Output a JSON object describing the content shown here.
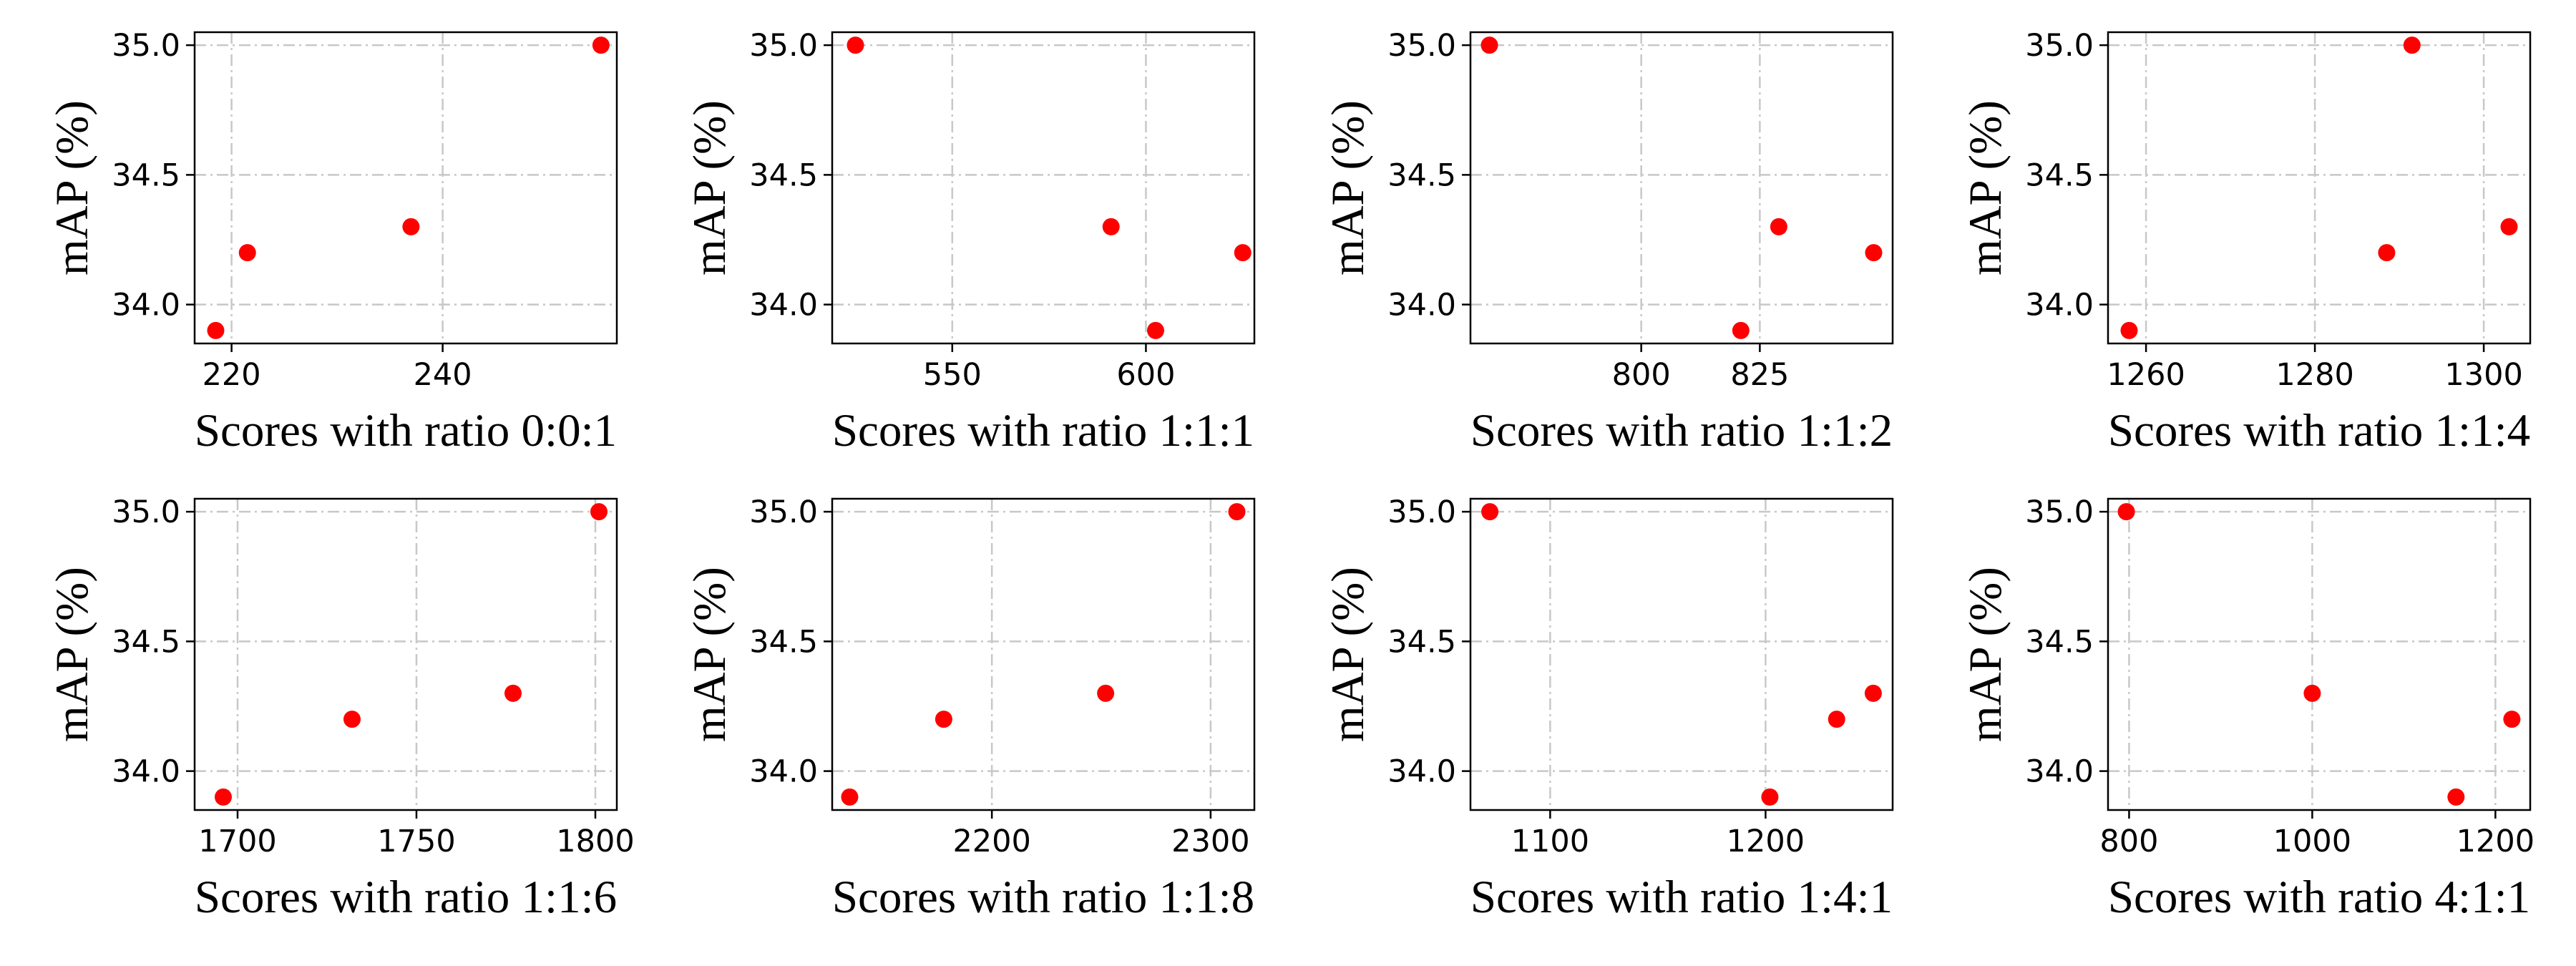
{
  "colors": {
    "point": "#ff0000",
    "grid": "#c8c8c8"
  },
  "chart_data": [
    {
      "type": "scatter",
      "xlabel": "Scores with ratio 0:0:1",
      "ylabel": "mAP (%)",
      "x": [
        218.5,
        221.5,
        237,
        255
      ],
      "y": [
        33.9,
        34.2,
        34.3,
        35.0
      ],
      "xlim": [
        216.5,
        256.5
      ],
      "ylim": [
        33.85,
        35.05
      ],
      "xticks": [
        220,
        240
      ],
      "yticks": [
        34.0,
        34.5,
        35.0
      ],
      "grid": true
    },
    {
      "type": "scatter",
      "xlabel": "Scores with ratio 1:1:1",
      "ylabel": "mAP (%)",
      "x": [
        525,
        591,
        602.5,
        625
      ],
      "y": [
        35.0,
        34.3,
        33.9,
        34.2
      ],
      "xlim": [
        519,
        628
      ],
      "ylim": [
        33.85,
        35.05
      ],
      "xticks": [
        550,
        600
      ],
      "yticks": [
        34.0,
        34.5,
        35.0
      ],
      "grid": true
    },
    {
      "type": "scatter",
      "xlabel": "Scores with ratio 1:1:2",
      "ylabel": "mAP (%)",
      "x": [
        768,
        821,
        829,
        849
      ],
      "y": [
        35.0,
        33.9,
        34.3,
        34.2
      ],
      "xlim": [
        764,
        853
      ],
      "ylim": [
        33.85,
        35.05
      ],
      "xticks": [
        800,
        825
      ],
      "yticks": [
        34.0,
        34.5,
        35.0
      ],
      "grid": true
    },
    {
      "type": "scatter",
      "xlabel": "Scores with ratio 1:1:4",
      "ylabel": "mAP (%)",
      "x": [
        1258,
        1288.5,
        1291.5,
        1303
      ],
      "y": [
        33.9,
        34.2,
        35.0,
        34.3
      ],
      "xlim": [
        1255.5,
        1305.5
      ],
      "ylim": [
        33.85,
        35.05
      ],
      "xticks": [
        1260,
        1280,
        1300
      ],
      "yticks": [
        34.0,
        34.5,
        35.0
      ],
      "grid": true
    },
    {
      "type": "scatter",
      "xlabel": "Scores with ratio 1:1:6",
      "ylabel": "mAP (%)",
      "x": [
        1696,
        1732,
        1777,
        1801
      ],
      "y": [
        33.9,
        34.2,
        34.3,
        35.0
      ],
      "xlim": [
        1688,
        1806
      ],
      "ylim": [
        33.85,
        35.05
      ],
      "xticks": [
        1700,
        1750,
        1800
      ],
      "yticks": [
        34.0,
        34.5,
        35.0
      ],
      "grid": true
    },
    {
      "type": "scatter",
      "xlabel": "Scores with ratio 1:1:8",
      "ylabel": "mAP (%)",
      "x": [
        2135,
        2178,
        2252,
        2312
      ],
      "y": [
        33.9,
        34.2,
        34.3,
        35.0
      ],
      "xlim": [
        2127,
        2320
      ],
      "ylim": [
        33.85,
        35.05
      ],
      "xticks": [
        2200,
        2300
      ],
      "yticks": [
        34.0,
        34.5,
        35.0
      ],
      "grid": true
    },
    {
      "type": "scatter",
      "xlabel": "Scores with ratio 1:4:1",
      "ylabel": "mAP (%)",
      "x": [
        1072,
        1202,
        1233,
        1250
      ],
      "y": [
        35.0,
        33.9,
        34.2,
        34.3
      ],
      "xlim": [
        1063,
        1259
      ],
      "ylim": [
        33.85,
        35.05
      ],
      "xticks": [
        1100,
        1200
      ],
      "yticks": [
        34.0,
        34.5,
        35.0
      ],
      "grid": true
    },
    {
      "type": "scatter",
      "xlabel": "Scores with ratio 4:1:1",
      "ylabel": "mAP (%)",
      "x": [
        797,
        1000,
        1157,
        1218
      ],
      "y": [
        35.0,
        34.3,
        33.9,
        34.2
      ],
      "xlim": [
        777,
        1238
      ],
      "ylim": [
        33.85,
        35.05
      ],
      "xticks": [
        800,
        1000,
        1200
      ],
      "yticks": [
        34.0,
        34.5,
        35.0
      ],
      "grid": true
    }
  ]
}
